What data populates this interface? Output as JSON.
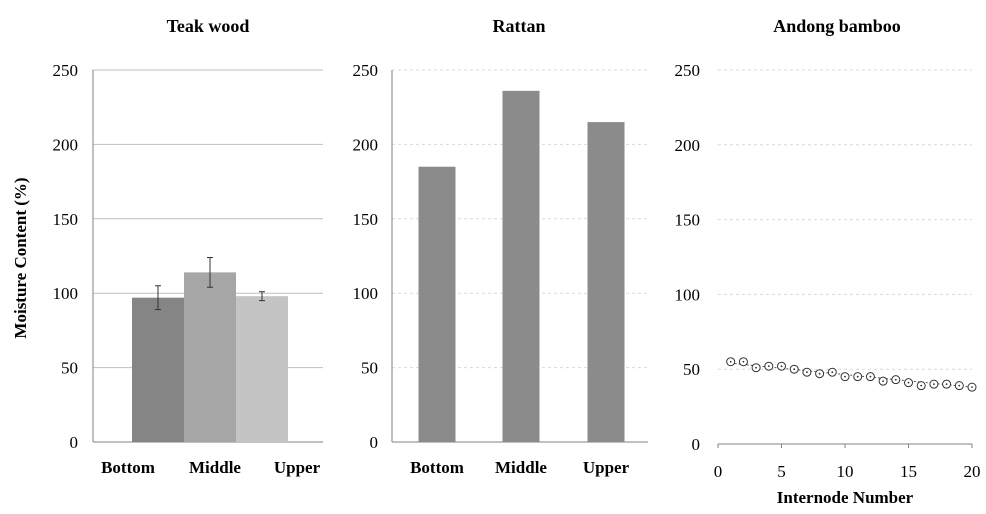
{
  "colors": {
    "bar_dark": "#858585",
    "bar_mid": "#a6a6a6",
    "bar_light": "#c4c4c4",
    "rattan_bar": "#8b8b8b",
    "grid": "#d9d9d9",
    "axis": "#808080"
  },
  "shared": {
    "ylabel": "Moisture Content (%)"
  },
  "chart_data": [
    {
      "type": "bar",
      "title": "Teak wood",
      "categories": [
        "Bottom",
        "Middle",
        "Upper"
      ],
      "values": [
        97,
        114,
        98
      ],
      "errors": [
        8,
        10,
        3
      ],
      "ylim": [
        0,
        250
      ],
      "yticks": [
        "0",
        "50",
        "100",
        "150",
        "200",
        "250"
      ],
      "grid": true,
      "xlabel": "",
      "ylabel": "Moisture Content (%)"
    },
    {
      "type": "bar",
      "title": "Rattan",
      "categories": [
        "Bottom",
        "Middle",
        "Upper"
      ],
      "values": [
        185,
        236,
        215
      ],
      "ylim": [
        0,
        250
      ],
      "yticks": [
        "0",
        "50",
        "100",
        "150",
        "200",
        "250"
      ],
      "grid": true,
      "xlabel": "",
      "ylabel": ""
    },
    {
      "type": "scatter",
      "title": "Andong bamboo",
      "x": [
        1,
        2,
        3,
        4,
        5,
        6,
        7,
        8,
        9,
        10,
        11,
        12,
        13,
        14,
        15,
        16,
        17,
        18,
        19,
        20
      ],
      "y": [
        55,
        55,
        51,
        52,
        52,
        50,
        48,
        47,
        48,
        45,
        45,
        45,
        42,
        43,
        41,
        39,
        40,
        40,
        39,
        38
      ],
      "trendline": [
        54,
        38
      ],
      "xlim": [
        0,
        20
      ],
      "ylim": [
        0,
        250
      ],
      "xticks": [
        "0",
        "5",
        "10",
        "15",
        "20"
      ],
      "yticks": [
        "0",
        "50",
        "100",
        "150",
        "200",
        "250"
      ],
      "grid": true,
      "xlabel": "Internode Number",
      "ylabel": ""
    }
  ]
}
